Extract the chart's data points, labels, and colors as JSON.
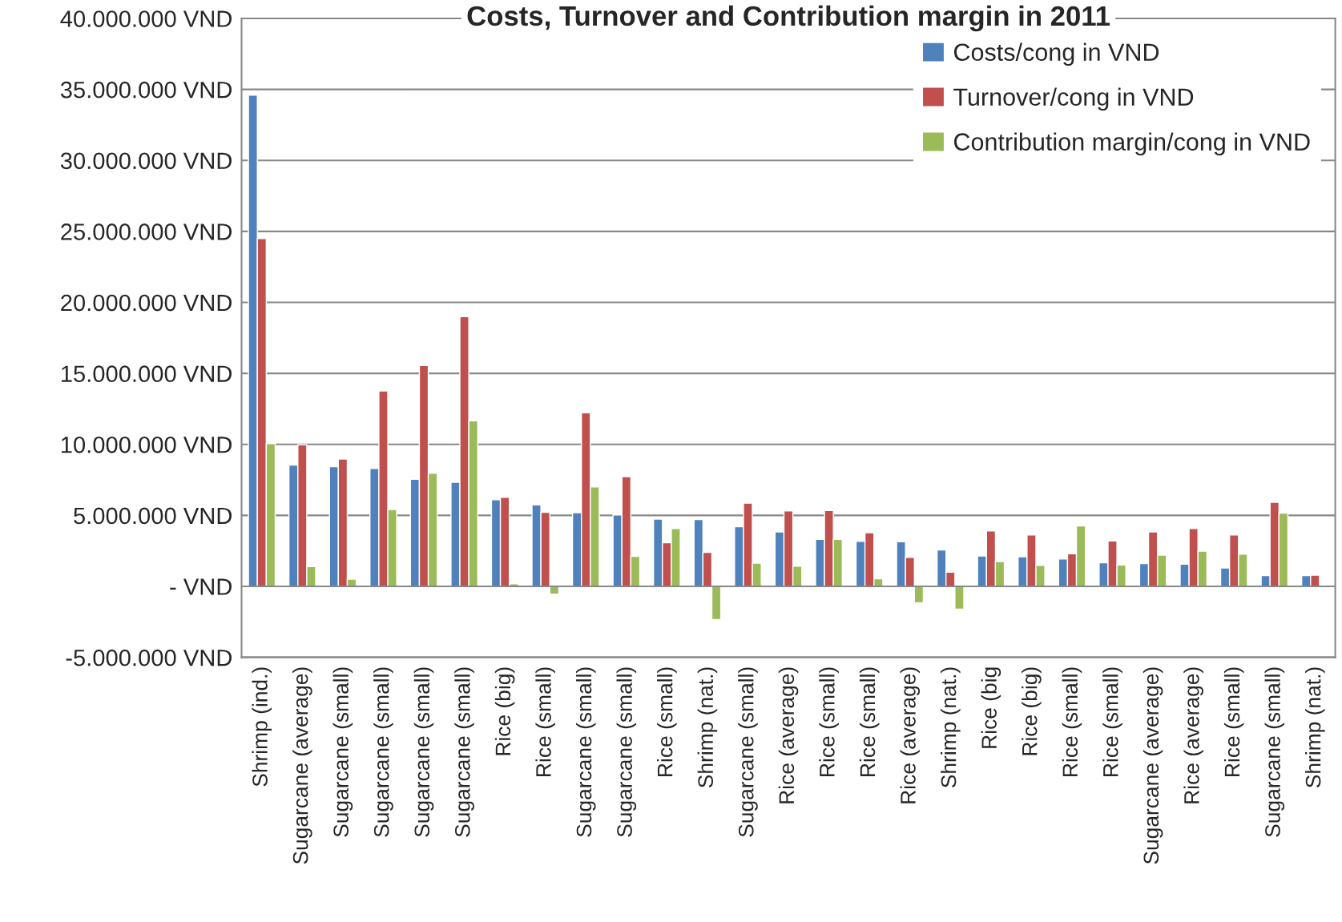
{
  "chart_data": {
    "type": "bar",
    "title": "Costs, Turnover and Contribution margin in 2011",
    "categories": [
      "Shrimp (ind.)",
      "Sugarcane (average)",
      "Sugarcane (small)",
      "Sugarcane (small)",
      "Sugarcane (small)",
      "Sugarcane (small)",
      "Rice (big)",
      "Rice (small)",
      "Sugarcane (small)",
      "Sugarcane (small)",
      "Rice (small)",
      "Shrimp (nat.)",
      "Sugarcane (small)",
      "Rice (average)",
      "Rice (small)",
      "Rice (small)",
      "Rice (average)",
      "Shrimp (nat.)",
      "Rice (big",
      "Rice (big)",
      "Rice (small)",
      "Rice (small)",
      "Sugarcane (average)",
      "Rice (average)",
      "Rice (small)",
      "Sugarcane (small)",
      "Shrimp (nat.)"
    ],
    "series": [
      {
        "name": "Costs/cong in VND",
        "color": "#4f81bd",
        "values": [
          34600000,
          8550000,
          8430000,
          8310000,
          7550000,
          7340000,
          6100000,
          5740000,
          5190000,
          5040000,
          4740000,
          4710000,
          4200000,
          3840000,
          3320000,
          3170000,
          3140000,
          2570000,
          2140000,
          2080000,
          1930000,
          1660000,
          1600000,
          1570000,
          1300000,
          760000,
          760000
        ]
      },
      {
        "name": "Turnover/cong in VND",
        "color": "#c0504d",
        "values": [
          24500000,
          9970000,
          8970000,
          13770000,
          15550000,
          19000000,
          6280000,
          5220000,
          12230000,
          7730000,
          3080000,
          2390000,
          5860000,
          5320000,
          5350000,
          3780000,
          2050000,
          1000000,
          3900000,
          3620000,
          2300000,
          3200000,
          3840000,
          4080000,
          3620000,
          5920000,
          790000
        ]
      },
      {
        "name": "Contribution margin/cong in VND",
        "color": "#9bbb59",
        "values": [
          10060000,
          1390000,
          510000,
          5410000,
          7970000,
          11660000,
          180000,
          -540000,
          7010000,
          2110000,
          4080000,
          -2330000,
          1630000,
          1420000,
          3320000,
          540000,
          -1150000,
          -1600000,
          1750000,
          1480000,
          4260000,
          1510000,
          2200000,
          2480000,
          2270000,
          5160000,
          null
        ]
      }
    ],
    "ylim": [
      -5000000,
      40000000
    ],
    "yticks": [
      {
        "value": -5000000,
        "label": "-5.000.000 VND"
      },
      {
        "value": 0,
        "label": "- VND"
      },
      {
        "value": 5000000,
        "label": "5.000.000 VND"
      },
      {
        "value": 10000000,
        "label": "10.000.000 VND"
      },
      {
        "value": 15000000,
        "label": "15.000.000 VND"
      },
      {
        "value": 20000000,
        "label": "20.000.000 VND"
      },
      {
        "value": 25000000,
        "label": "25.000.000 VND"
      },
      {
        "value": 30000000,
        "label": "30.000.000 VND"
      },
      {
        "value": 35000000,
        "label": "35.000.000 VND"
      },
      {
        "value": 40000000,
        "label": "40.000.000 VND"
      }
    ],
    "grid": "y",
    "legend": "top right"
  }
}
